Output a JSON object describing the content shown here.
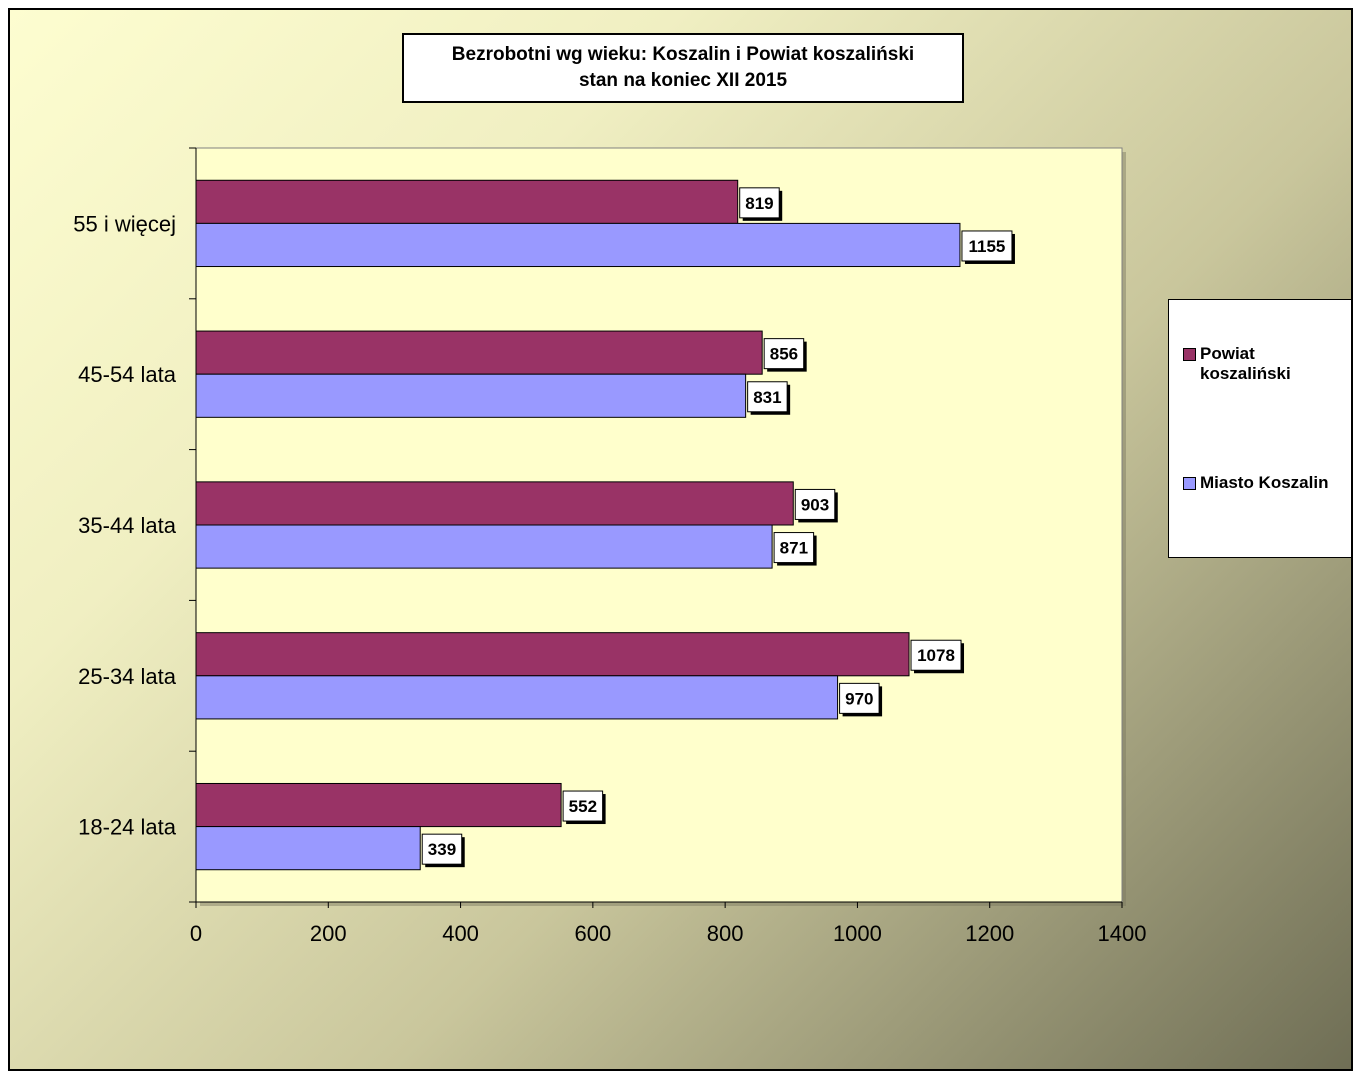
{
  "chart_data": {
    "type": "bar",
    "orientation": "horizontal",
    "title": "Bezrobotni wg wieku: Koszalin i Powiat koszaliński",
    "subtitle": "stan na koniec XII 2015",
    "categories": [
      "55 i więcej",
      "45-54 lata",
      "35-44 lata",
      "25-34 lata",
      "18-24 lata"
    ],
    "series": [
      {
        "name": "Powiat koszaliński",
        "color": "#993366",
        "values": [
          819,
          856,
          903,
          1078,
          552
        ]
      },
      {
        "name": "Miasto Koszalin",
        "color": "#9999ff",
        "values": [
          1155,
          831,
          871,
          970,
          339
        ]
      }
    ],
    "xlim": [
      0,
      1400
    ],
    "xticks": [
      "0",
      "200",
      "400",
      "600",
      "800",
      "1000",
      "1200",
      "1400"
    ],
    "data_labels": true,
    "legend_position": "right",
    "grid": false,
    "plot_background": "#ffffcc"
  }
}
